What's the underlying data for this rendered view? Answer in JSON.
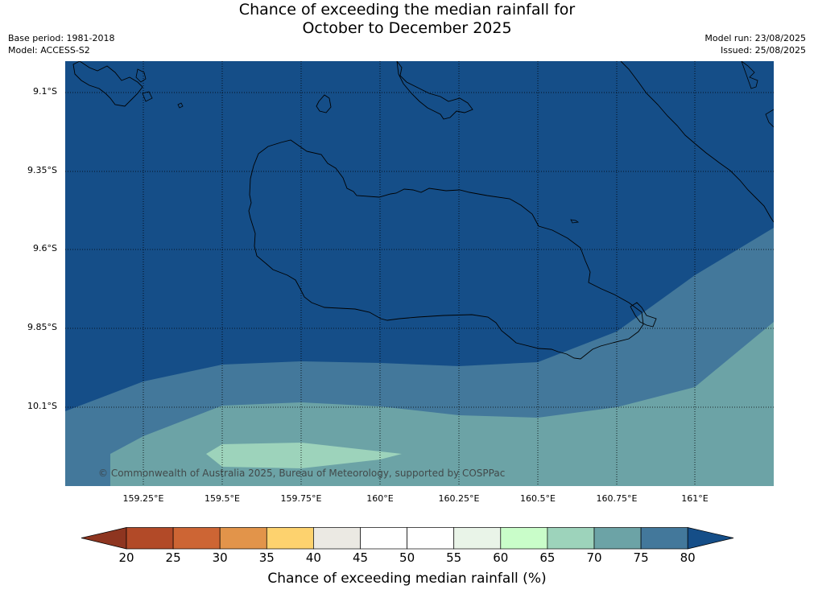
{
  "title": {
    "line1": "Chance of exceeding the median rainfall for",
    "line2": "October to December 2025"
  },
  "meta": {
    "base_period": "Base period: 1981-2018",
    "model": "Model: ACCESS-S2",
    "model_run": "Model run: 23/08/2025",
    "issued": "Issued: 25/08/2025"
  },
  "map": {
    "lat_labels": [
      "9.1°S",
      "9.35°S",
      "9.6°S",
      "9.85°S",
      "10.1°S"
    ],
    "lon_labels": [
      "159.25°E",
      "159.5°E",
      "159.75°E",
      "160°E",
      "160.25°E",
      "160.5°E",
      "160.75°E",
      "161°E"
    ],
    "copyright": "© Commonwealth of Australia 2025, Bureau of Meteorology, supported by COSPPac",
    "colors": {
      "p80": "#154e88",
      "p75": "#43789b",
      "p70": "#6ca3a6",
      "p65": "#9dd3bb",
      "coast": "#000000"
    }
  },
  "colorbar": {
    "label": "Chance of exceeding median rainfall (%)",
    "ticks": [
      "20",
      "25",
      "30",
      "35",
      "40",
      "45",
      "50",
      "55",
      "60",
      "65",
      "70",
      "75",
      "80"
    ],
    "colors": [
      "#8e3520",
      "#b24a28",
      "#cd6534",
      "#e2944a",
      "#fdd26e",
      "#ebe9e3",
      "#ffffff",
      "#ffffff",
      "#e9f4e8",
      "#c9fdc9",
      "#9dd3bb",
      "#6ca3a6",
      "#43789b",
      "#154e88"
    ]
  }
}
